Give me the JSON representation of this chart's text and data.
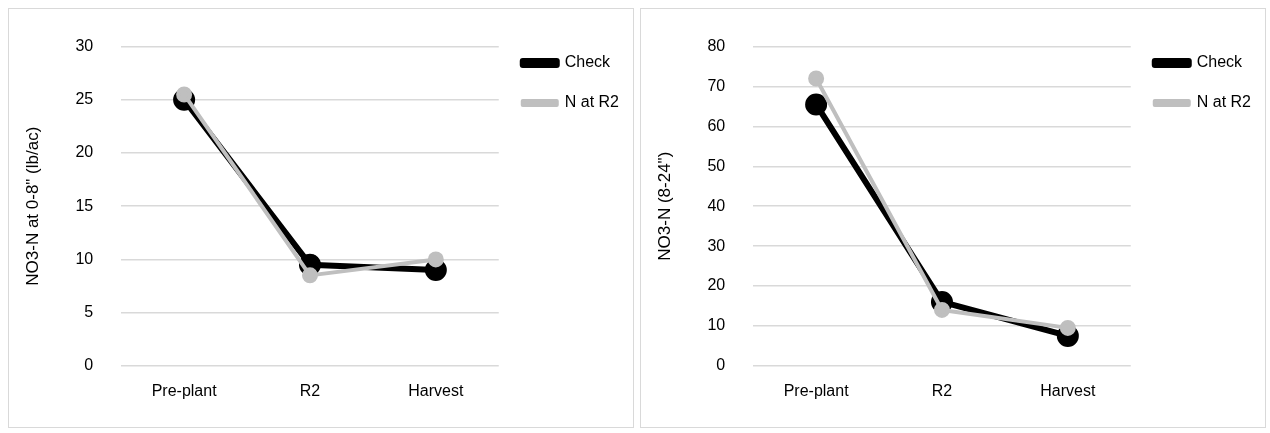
{
  "chart_data": [
    {
      "type": "line",
      "ylabel": "NO3-N at 0-8\" (lb/ac)",
      "categories": [
        "Pre-plant",
        "R2",
        "Harvest"
      ],
      "series": [
        {
          "name": "Check",
          "color": "#000000",
          "values": [
            25,
            9.5,
            9
          ]
        },
        {
          "name": "N at R2",
          "color": "#bfbfbf",
          "values": [
            25.5,
            8.5,
            10
          ]
        }
      ],
      "ylim": [
        0,
        30
      ],
      "yticks": [
        0,
        5,
        10,
        15,
        20,
        25,
        30
      ],
      "grid": "y",
      "legend": "top right",
      "marker": "circle",
      "line_style": "solid"
    },
    {
      "type": "line",
      "ylabel": "NO3-N (8-24\")",
      "categories": [
        "Pre-plant",
        "R2",
        "Harvest"
      ],
      "series": [
        {
          "name": "Check",
          "color": "#000000",
          "values": [
            65.5,
            16,
            7.5
          ]
        },
        {
          "name": "N at R2",
          "color": "#bfbfbf",
          "values": [
            72,
            14,
            9.5
          ]
        }
      ],
      "ylim": [
        0,
        80
      ],
      "yticks": [
        0,
        10,
        20,
        30,
        40,
        50,
        60,
        70,
        80
      ],
      "grid": "y",
      "legend": "top right",
      "marker": "circle",
      "line_style": "solid"
    }
  ]
}
